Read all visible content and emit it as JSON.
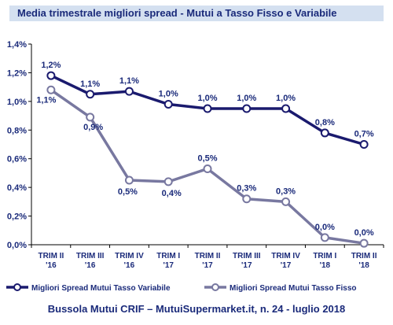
{
  "chart_data": {
    "type": "line",
    "title": "Media trimestrale migliori spread - Mutui a Tasso Fisso e Variabile",
    "categories": [
      [
        "TRIM II",
        "'16"
      ],
      [
        "TRIM III",
        "'16"
      ],
      [
        "TRIM IV",
        "'16"
      ],
      [
        "TRIM I",
        "'17"
      ],
      [
        "TRIM II",
        "'17"
      ],
      [
        "TRIM III",
        "'17"
      ],
      [
        "TRIM IV",
        "'17"
      ],
      [
        "TRIM I",
        "'18"
      ],
      [
        "TRIM II",
        "'18"
      ]
    ],
    "series": [
      {
        "name": "Migliori Spread Mutui Tasso Variabile",
        "color": "#1a1a6e",
        "values": [
          1.18,
          1.05,
          1.07,
          0.98,
          0.95,
          0.95,
          0.95,
          0.78,
          0.7
        ],
        "labels": [
          "1,2%",
          "1,1%",
          "1,1%",
          "1,0%",
          "1,0%",
          "1,0%",
          "1,0%",
          "0,8%",
          "0,7%"
        ]
      },
      {
        "name": "Migliori Spread Mutui Tasso Fisso",
        "color": "#7878a0",
        "values": [
          1.08,
          0.89,
          0.45,
          0.44,
          0.53,
          0.32,
          0.3,
          0.05,
          0.01
        ],
        "labels": [
          "1,1%",
          "0,9%",
          "0,5%",
          "0,4%",
          "0,5%",
          "0,3%",
          "0,3%",
          "0,0%",
          "0,0%"
        ]
      }
    ],
    "ylim": [
      0,
      1.4
    ],
    "yticks": [
      0,
      0.2,
      0.4,
      0.6,
      0.8,
      1.0,
      1.2,
      1.4
    ],
    "ytick_labels": [
      "0,0%",
      "0,2%",
      "0,4%",
      "0,6%",
      "0,8%",
      "1,0%",
      "1,2%",
      "1,4%"
    ],
    "grid": false,
    "legend": "bottom"
  },
  "footer": "Bussola Mutui CRIF – MutuiSupermarket.it, n. 24 - luglio 2018"
}
